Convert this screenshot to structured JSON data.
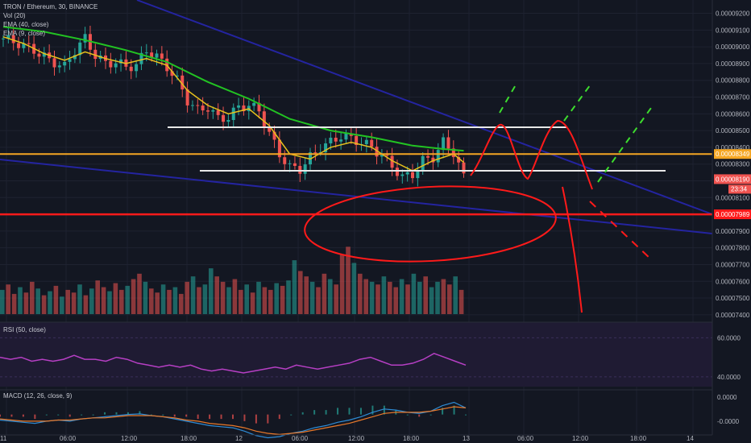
{
  "legend": {
    "symbol": "TRON / Ethereum, 30, BINANCE",
    "vol": "Vol (20)",
    "ema40": "EMA (40, close)",
    "ema9": "EMA (9, close)"
  },
  "rsi_legend": "RSI (50, close)",
  "macd_legend": "MACD (12, 26, close, 9)",
  "colors": {
    "background": "#131722",
    "up": "#26a69a",
    "down": "#ef5350",
    "ema40": "#22c322",
    "ema9": "#e8c21c",
    "trend": "#2424a0",
    "support": "#e8e8e8",
    "orange": "#f5a623",
    "red": "#ff1a1a",
    "rsi": "#b63fc4",
    "rsi_band": "#2a1e3f",
    "macd": "#2e8cd6",
    "signal": "#e8782a",
    "green_dash": "#3ddc2e"
  },
  "chart_data": [
    {
      "type": "candlestick",
      "title": "TRON / Ethereum, 30, BINANCE",
      "ylim": [
        7.38e-05,
        9.27e-05
      ],
      "x_tick_labels": [
        "11",
        "06:00",
        "12:00",
        "18:00",
        "12",
        "06:00",
        "12:00",
        "18:00",
        "13",
        "06:00",
        "12:00",
        "18:00",
        "14"
      ],
      "y_tick_labels": [
        "0.00009200",
        "0.00009100",
        "0.00009000",
        "0.00008900",
        "0.00008800",
        "0.00008700",
        "0.00008600",
        "0.00008500",
        "0.00008400",
        "0.00008300",
        "0.00008200",
        "0.00008100",
        "0.00008000",
        "0.00007900",
        "0.00007800",
        "0.00007700",
        "0.00007600",
        "0.00007500",
        "0.00007400"
      ],
      "y_ticks": [
        9.2e-05,
        9.1e-05,
        9e-05,
        8.9e-05,
        8.8e-05,
        8.7e-05,
        8.6e-05,
        8.5e-05,
        8.4e-05,
        8.3e-05,
        8.2e-05,
        8.1e-05,
        8e-05,
        7.9e-05,
        7.8e-05,
        7.7e-05,
        7.6e-05,
        7.5e-05,
        7.4e-05
      ],
      "close_path": [
        [
          0,
          9.05e-05
        ],
        [
          3,
          9.02e-05
        ],
        [
          6,
          8.98e-05
        ],
        [
          9,
          8.92e-05
        ],
        [
          12,
          8.88e-05
        ],
        [
          14,
          8.98e-05
        ],
        [
          16,
          9.05e-05
        ],
        [
          18,
          8.95e-05
        ],
        [
          20,
          8.9e-05
        ],
        [
          22,
          8.91e-05
        ],
        [
          24,
          8.88e-05
        ],
        [
          26,
          8.89e-05
        ],
        [
          28,
          8.98e-05
        ],
        [
          30,
          8.94e-05
        ],
        [
          32,
          8.88e-05
        ],
        [
          34,
          8.8e-05
        ],
        [
          36,
          8.68e-05
        ],
        [
          38,
          8.62e-05
        ],
        [
          40,
          8.64e-05
        ],
        [
          42,
          8.57e-05
        ],
        [
          44,
          8.58e-05
        ],
        [
          46,
          8.64e-05
        ],
        [
          48,
          8.65e-05
        ],
        [
          50,
          8.62e-05
        ],
        [
          52,
          8.48e-05
        ],
        [
          54,
          8.36e-05
        ],
        [
          56,
          8.28e-05
        ],
        [
          58,
          8.27e-05
        ],
        [
          60,
          8.34e-05
        ],
        [
          62,
          8.4e-05
        ],
        [
          64,
          8.43e-05
        ],
        [
          66,
          8.47e-05
        ],
        [
          68,
          8.45e-05
        ],
        [
          70,
          8.43e-05
        ],
        [
          72,
          8.4e-05
        ],
        [
          74,
          8.35e-05
        ],
        [
          76,
          8.29e-05
        ],
        [
          78,
          8.22e-05
        ],
        [
          80,
          8.24e-05
        ],
        [
          82,
          8.32e-05
        ],
        [
          84,
          8.34e-05
        ],
        [
          86,
          8.43e-05
        ],
        [
          88,
          8.37e-05
        ],
        [
          90,
          8.22e-05
        ]
      ],
      "ema9_path": [
        [
          0,
          9.06e-05
        ],
        [
          4,
          9.02e-05
        ],
        [
          8,
          8.96e-05
        ],
        [
          12,
          8.92e-05
        ],
        [
          16,
          8.97e-05
        ],
        [
          20,
          8.93e-05
        ],
        [
          24,
          8.9e-05
        ],
        [
          28,
          8.93e-05
        ],
        [
          32,
          8.89e-05
        ],
        [
          36,
          8.74e-05
        ],
        [
          40,
          8.65e-05
        ],
        [
          44,
          8.6e-05
        ],
        [
          48,
          8.63e-05
        ],
        [
          52,
          8.53e-05
        ],
        [
          56,
          8.36e-05
        ],
        [
          60,
          8.33e-05
        ],
        [
          64,
          8.4e-05
        ],
        [
          68,
          8.43e-05
        ],
        [
          72,
          8.4e-05
        ],
        [
          76,
          8.32e-05
        ],
        [
          80,
          8.26e-05
        ],
        [
          84,
          8.32e-05
        ],
        [
          88,
          8.36e-05
        ],
        [
          90,
          8.31e-05
        ]
      ],
      "ema40_path": [
        [
          0,
          9.12e-05
        ],
        [
          8,
          9.09e-05
        ],
        [
          16,
          9.04e-05
        ],
        [
          24,
          8.98e-05
        ],
        [
          32,
          8.91e-05
        ],
        [
          40,
          8.79e-05
        ],
        [
          48,
          8.69e-05
        ],
        [
          56,
          8.57e-05
        ],
        [
          64,
          8.5e-05
        ],
        [
          72,
          8.46e-05
        ],
        [
          80,
          8.41e-05
        ],
        [
          86,
          8.39e-05
        ],
        [
          90,
          8.38e-05
        ]
      ],
      "horizontal_levels": {
        "upper_resistance": 8.52e-05,
        "lower_support": 8.26e-05,
        "orange_level": 8.36e-05,
        "red_level": 8e-05
      },
      "price_tags": {
        "orange": "0.00008349",
        "current": "0.00008190",
        "countdown": "23:34",
        "red": "0.00007989"
      }
    },
    {
      "type": "bar",
      "title": "Vol (20)",
      "values": [
        18,
        22,
        15,
        20,
        16,
        24,
        19,
        14,
        17,
        21,
        13,
        18,
        16,
        22,
        14,
        19,
        25,
        20,
        17,
        23,
        18,
        21,
        26,
        30,
        24,
        19,
        16,
        22,
        18,
        20,
        15,
        24,
        28,
        20,
        22,
        34,
        28,
        24,
        20,
        26,
        18,
        22,
        16,
        24,
        20,
        18,
        23,
        21,
        25,
        40,
        32,
        28,
        24,
        20,
        30,
        26,
        22,
        44,
        50,
        38,
        30,
        26,
        24,
        22,
        28,
        24,
        20,
        26,
        22,
        30,
        24,
        28,
        20,
        24,
        26,
        22,
        28,
        18
      ],
      "up": [
        1,
        0,
        0,
        1,
        0,
        0,
        1,
        0,
        1,
        0,
        1,
        0,
        0,
        1,
        0,
        1,
        0,
        0,
        1,
        0,
        0,
        1,
        0,
        0,
        1,
        0,
        0,
        1,
        0,
        1,
        0,
        0,
        1,
        0,
        1,
        1,
        0,
        0,
        1,
        0,
        0,
        1,
        0,
        1,
        0,
        0,
        1,
        0,
        1,
        1,
        0,
        0,
        1,
        0,
        0,
        1,
        0,
        0,
        0,
        1,
        0,
        0,
        1,
        0,
        1,
        0,
        0,
        1,
        0,
        1,
        1,
        0,
        1,
        1,
        0,
        0,
        1,
        0
      ]
    },
    {
      "type": "line",
      "title": "RSI (50, close)",
      "ylim": [
        35,
        68
      ],
      "y_tick_labels": [
        "60.0000",
        "40.0000"
      ],
      "y_ticks": [
        60,
        40
      ],
      "values": [
        50,
        49,
        50,
        48,
        49,
        48,
        49,
        51,
        49,
        49,
        48,
        50,
        49,
        47,
        46,
        45,
        46,
        45,
        46,
        44,
        43,
        44,
        43,
        42,
        43,
        44,
        45,
        44,
        46,
        45,
        44,
        45,
        46,
        47,
        49,
        50,
        48,
        46,
        46,
        47,
        49,
        52,
        50,
        48,
        46
      ]
    },
    {
      "type": "line",
      "title": "MACD (12, 26, close, 9)",
      "ylim": [
        -5e-07,
        3e-07
      ],
      "y_tick_labels": [
        "0.0000",
        "-0.0000"
      ],
      "y_ticks": [
        1e-07,
        -3e-07
      ],
      "macd": [
        -0.5,
        -0.6,
        -0.7,
        -0.8,
        -0.6,
        -0.5,
        -0.6,
        -0.4,
        -0.3,
        -0.2,
        -0.1,
        0,
        0.05,
        -0.1,
        -0.2,
        -0.4,
        -0.6,
        -0.8,
        -1.0,
        -1.1,
        -1.2,
        -1.5,
        -1.9,
        -2.1,
        -2.0,
        -1.7,
        -1.5,
        -1.2,
        -1.0,
        -0.7,
        -0.5,
        -0.2,
        0.2,
        0.5,
        0.4,
        0.2,
        0.1,
        0.3,
        0.8,
        1.1,
        0.6
      ],
      "signal": [
        -0.4,
        -0.5,
        -0.6,
        -0.6,
        -0.6,
        -0.5,
        -0.5,
        -0.4,
        -0.3,
        -0.3,
        -0.2,
        -0.1,
        -0.1,
        -0.1,
        -0.2,
        -0.3,
        -0.5,
        -0.6,
        -0.8,
        -0.9,
        -1.0,
        -1.2,
        -1.5,
        -1.7,
        -1.8,
        -1.7,
        -1.6,
        -1.4,
        -1.2,
        -1.0,
        -0.8,
        -0.5,
        -0.2,
        0.1,
        0.2,
        0.2,
        0.2,
        0.3,
        0.5,
        0.7,
        0.6
      ]
    }
  ]
}
